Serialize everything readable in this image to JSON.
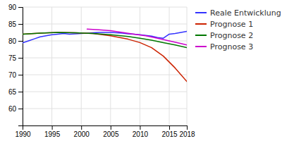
{
  "chart_data": {
    "type": "line",
    "series": [
      {
        "name": "Reale Entwicklung",
        "color": "#3333ff",
        "x": [
          1990,
          1991,
          1992,
          1993,
          1994,
          1995,
          1996,
          1997,
          1998,
          1999,
          2000,
          2001,
          2002,
          2003,
          2004,
          2005,
          2006,
          2007,
          2008,
          2009,
          2010,
          2011,
          2012,
          2013,
          2014,
          2015,
          2016,
          2017,
          2018
        ],
        "values": [
          79.4,
          80.0,
          80.6,
          81.2,
          81.5,
          81.8,
          82.0,
          82.2,
          82.0,
          82.1,
          82.2,
          82.3,
          82.4,
          82.5,
          82.5,
          82.5,
          82.4,
          82.3,
          82.1,
          82.0,
          81.8,
          81.6,
          81.4,
          81.0,
          80.8,
          82.0,
          82.2,
          82.5,
          82.8
        ]
      },
      {
        "name": "Prognose 1",
        "color": "#cc2200",
        "x": [
          1990,
          1993,
          1996,
          1999,
          2002,
          2005,
          2008,
          2010,
          2012,
          2014,
          2016,
          2018
        ],
        "values": [
          82.0,
          82.3,
          82.5,
          82.4,
          82.2,
          81.5,
          80.5,
          79.5,
          78.0,
          75.5,
          72.0,
          68.0
        ]
      },
      {
        "name": "Prognose 2",
        "color": "#007700",
        "x": [
          1990,
          1993,
          1996,
          1999,
          2002,
          2005,
          2008,
          2010,
          2012,
          2014,
          2016,
          2018
        ],
        "values": [
          82.0,
          82.3,
          82.5,
          82.4,
          82.2,
          81.8,
          81.3,
          80.8,
          80.2,
          79.5,
          78.8,
          78.0
        ]
      },
      {
        "name": "Prognose 3",
        "color": "#cc00cc",
        "x": [
          2001,
          2003,
          2005,
          2007,
          2009,
          2011,
          2013,
          2015,
          2017,
          2018
        ],
        "values": [
          83.5,
          83.3,
          83.0,
          82.5,
          82.0,
          81.5,
          80.8,
          80.0,
          79.2,
          78.8
        ]
      }
    ],
    "xlim": [
      1990,
      2018
    ],
    "xticks": [
      1990,
      1995,
      2000,
      2005,
      2010,
      2015,
      2018
    ],
    "ylim": [
      55,
      90
    ],
    "yticks": [
      60,
      65,
      70,
      75,
      80,
      85,
      90
    ],
    "grid": true,
    "legend": "right"
  }
}
